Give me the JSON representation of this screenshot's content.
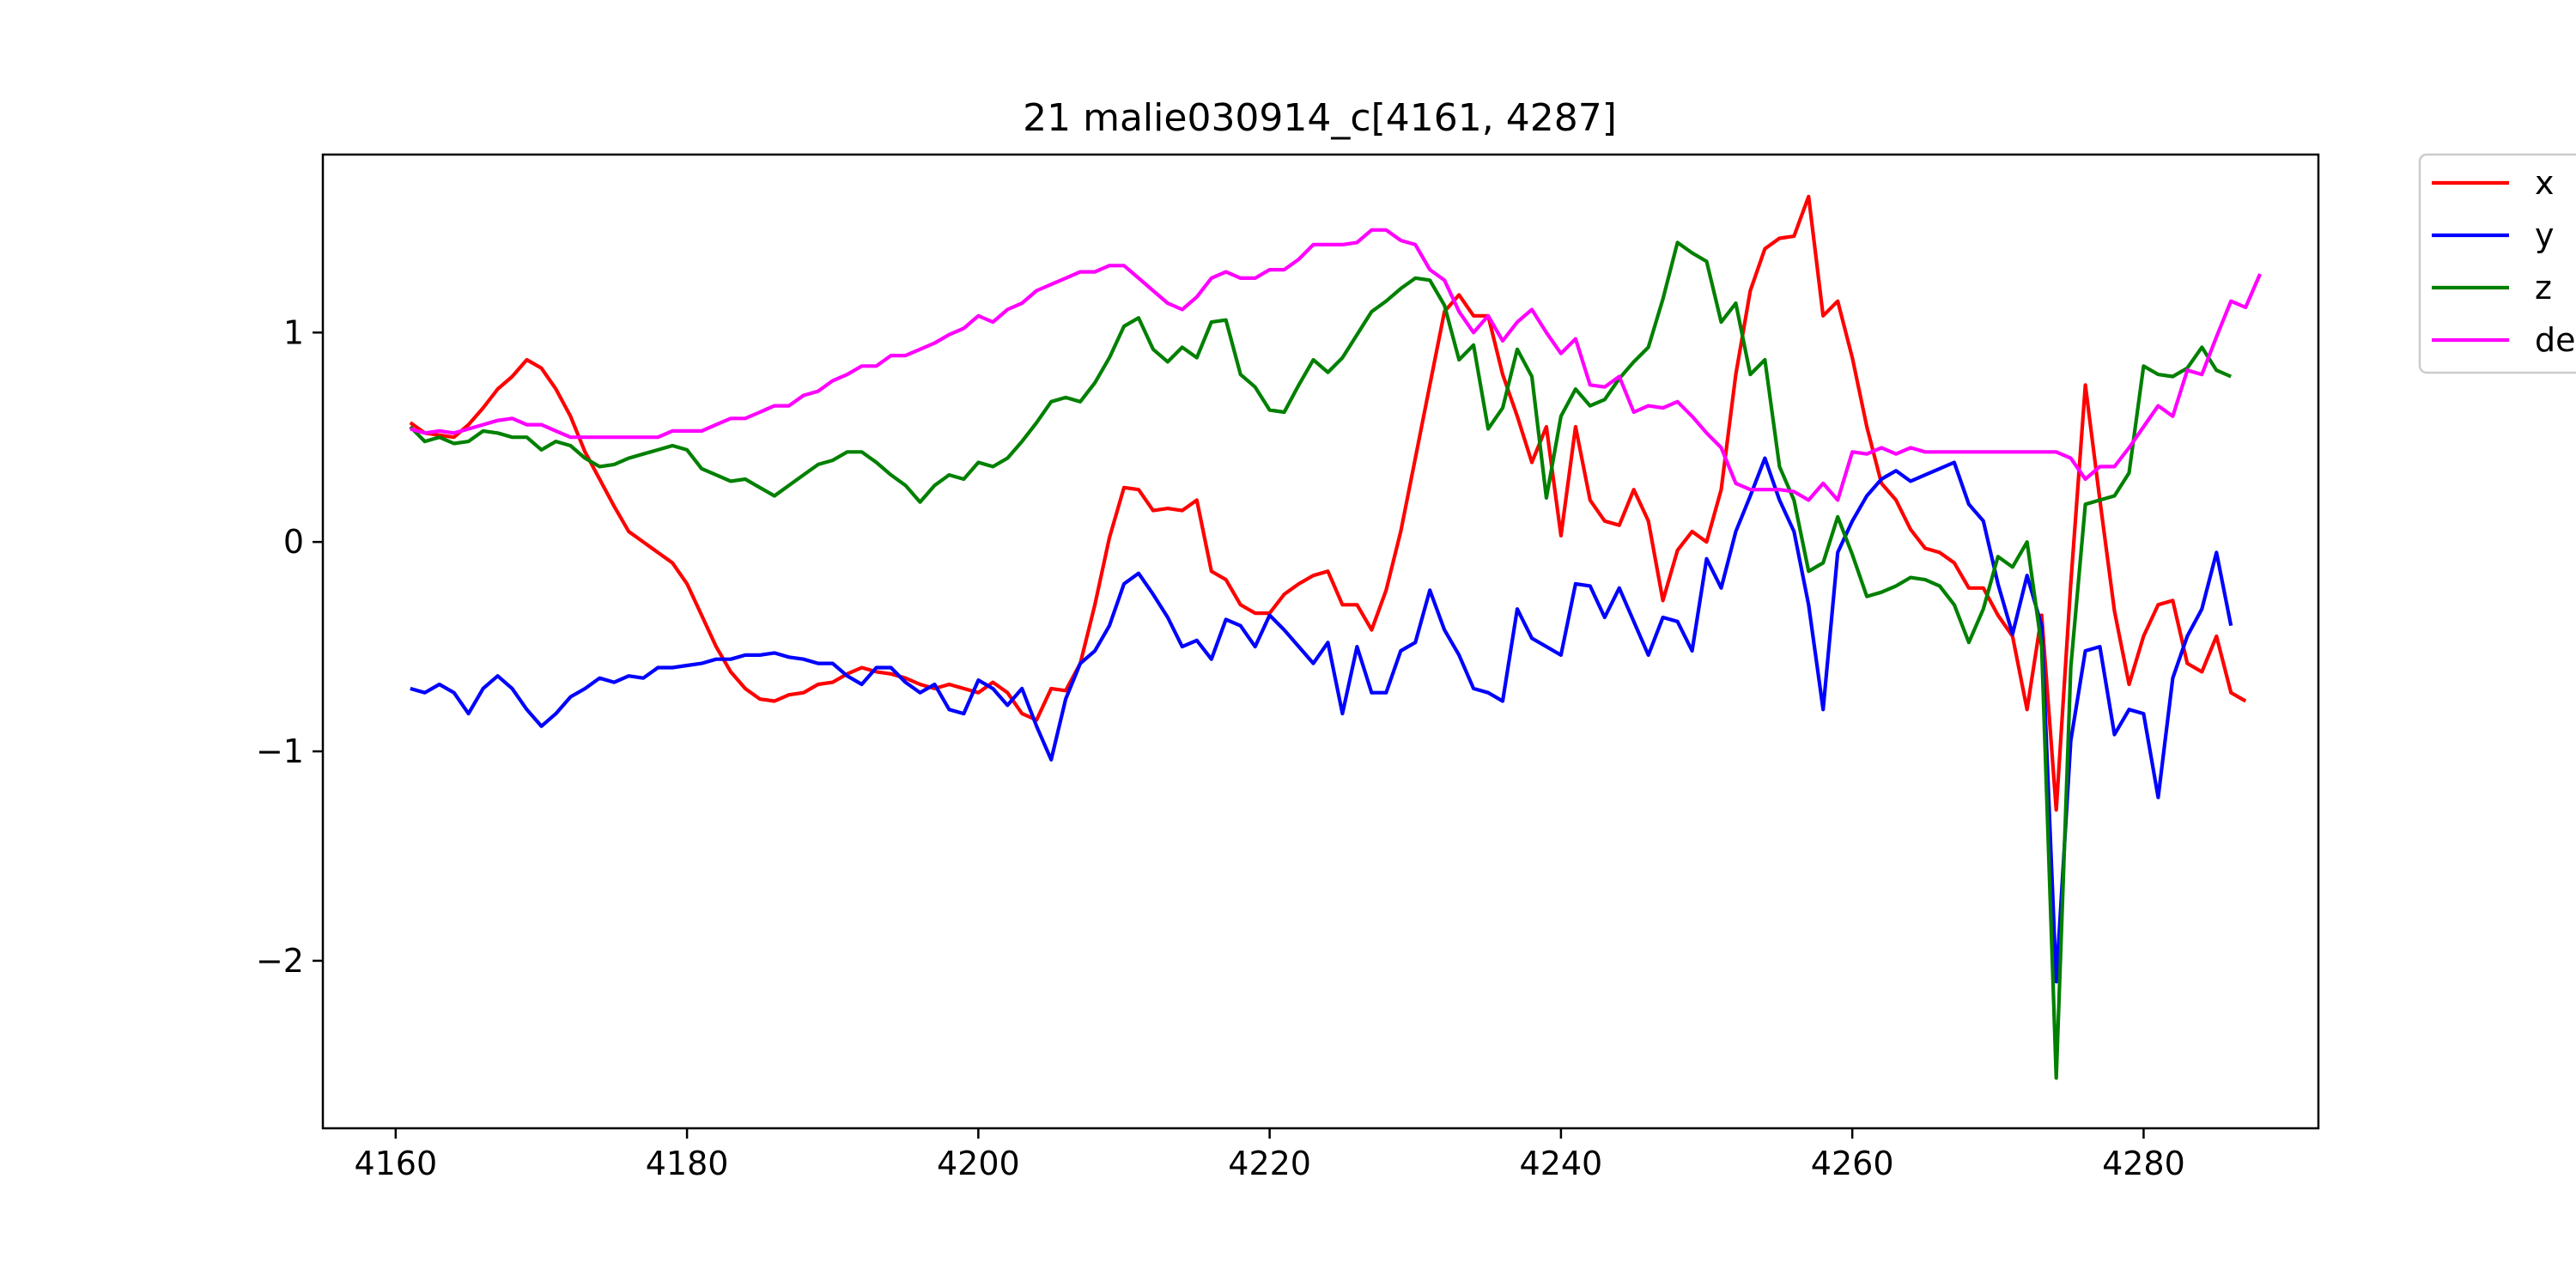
{
  "chart_data": {
    "type": "line",
    "title": "21 malie030914_c[4161, 4287]",
    "xlabel": "",
    "ylabel": "",
    "xlim": [
      4155,
      4292
    ],
    "ylim": [
      -2.8,
      1.85
    ],
    "grid": false,
    "legend_position": "outside-right-top",
    "x_ticks": [
      4160,
      4180,
      4200,
      4220,
      4240,
      4260,
      4280
    ],
    "x_tick_labels": [
      "4160",
      "4180",
      "4200",
      "4220",
      "4240",
      "4260",
      "4280"
    ],
    "y_ticks": [
      1,
      0,
      -1,
      -2
    ],
    "y_tick_labels": [
      "1",
      "0",
      "−1",
      "−2"
    ],
    "x_start": 4161,
    "series": [
      {
        "name": "x",
        "color": "#ff0000",
        "values": [
          0.57,
          0.52,
          0.51,
          0.5,
          0.56,
          0.64,
          0.73,
          0.79,
          0.87,
          0.83,
          0.73,
          0.6,
          0.43,
          0.3,
          0.17,
          0.05,
          0.0,
          -0.05,
          -0.1,
          -0.2,
          -0.35,
          -0.5,
          -0.62,
          -0.7,
          -0.75,
          -0.76,
          -0.73,
          -0.72,
          -0.68,
          -0.67,
          -0.63,
          -0.6,
          -0.62,
          -0.63,
          -0.65,
          -0.68,
          -0.7,
          -0.68,
          -0.7,
          -0.72,
          -0.67,
          -0.72,
          -0.82,
          -0.85,
          -0.7,
          -0.71,
          -0.58,
          -0.3,
          0.02,
          0.26,
          0.25,
          0.15,
          0.16,
          0.15,
          0.2,
          -0.14,
          -0.18,
          -0.3,
          -0.34,
          -0.34,
          -0.25,
          -0.2,
          -0.16,
          -0.14,
          -0.3,
          -0.3,
          -0.42,
          -0.23,
          0.05,
          0.4,
          0.75,
          1.1,
          1.18,
          1.08,
          1.08,
          0.8,
          0.6,
          0.38,
          0.55,
          0.03,
          0.55,
          0.2,
          0.1,
          0.08,
          0.25,
          0.1,
          -0.28,
          -0.04,
          0.05,
          0.0,
          0.25,
          0.8,
          1.2,
          1.4,
          1.45,
          1.46,
          1.65,
          1.08,
          1.15,
          0.88,
          0.55,
          0.28,
          0.2,
          0.06,
          -0.03,
          -0.05,
          -0.1,
          -0.22,
          -0.22,
          -0.35,
          -0.45,
          -0.8,
          -0.35,
          -1.28,
          -0.2,
          0.75,
          0.2,
          -0.33,
          -0.68,
          -0.45,
          -0.3,
          -0.28,
          -0.58,
          -0.62,
          -0.45,
          -0.72,
          -0.76
        ]
      },
      {
        "name": "y",
        "color": "#0000ff",
        "values": [
          -0.7,
          -0.72,
          -0.68,
          -0.72,
          -0.82,
          -0.7,
          -0.64,
          -0.7,
          -0.8,
          -0.88,
          -0.82,
          -0.74,
          -0.7,
          -0.65,
          -0.67,
          -0.64,
          -0.65,
          -0.6,
          -0.6,
          -0.59,
          -0.58,
          -0.56,
          -0.56,
          -0.54,
          -0.54,
          -0.53,
          -0.55,
          -0.56,
          -0.58,
          -0.58,
          -0.64,
          -0.68,
          -0.6,
          -0.6,
          -0.67,
          -0.72,
          -0.68,
          -0.8,
          -0.82,
          -0.66,
          -0.7,
          -0.78,
          -0.7,
          -0.88,
          -1.04,
          -0.75,
          -0.58,
          -0.52,
          -0.4,
          -0.2,
          -0.15,
          -0.25,
          -0.36,
          -0.5,
          -0.47,
          -0.56,
          -0.37,
          -0.4,
          -0.5,
          -0.35,
          -0.42,
          -0.5,
          -0.58,
          -0.48,
          -0.82,
          -0.5,
          -0.72,
          -0.72,
          -0.52,
          -0.48,
          -0.23,
          -0.42,
          -0.54,
          -0.7,
          -0.72,
          -0.76,
          -0.32,
          -0.46,
          -0.5,
          -0.54,
          -0.2,
          -0.21,
          -0.36,
          -0.22,
          -0.38,
          -0.54,
          -0.36,
          -0.38,
          -0.52,
          -0.08,
          -0.22,
          0.05,
          0.22,
          0.4,
          0.2,
          0.05,
          -0.3,
          -0.8,
          -0.05,
          0.1,
          0.22,
          0.3,
          0.34,
          0.29,
          0.32,
          0.35,
          0.38,
          0.18,
          0.1,
          -0.2,
          -0.44,
          -0.16,
          -0.4,
          -2.1,
          -0.95,
          -0.52,
          -0.5,
          -0.92,
          -0.8,
          -0.82,
          -1.22,
          -0.65,
          -0.45,
          -0.32,
          -0.05,
          -0.4
        ]
      },
      {
        "name": "z",
        "color": "#008000",
        "values": [
          0.55,
          0.48,
          0.5,
          0.47,
          0.48,
          0.53,
          0.52,
          0.5,
          0.5,
          0.44,
          0.48,
          0.46,
          0.4,
          0.36,
          0.37,
          0.4,
          0.42,
          0.44,
          0.46,
          0.44,
          0.35,
          0.32,
          0.29,
          0.3,
          0.26,
          0.22,
          0.27,
          0.32,
          0.37,
          0.39,
          0.43,
          0.43,
          0.38,
          0.32,
          0.27,
          0.19,
          0.27,
          0.32,
          0.3,
          0.38,
          0.36,
          0.4,
          0.48,
          0.57,
          0.67,
          0.69,
          0.67,
          0.76,
          0.88,
          1.03,
          1.07,
          0.92,
          0.86,
          0.93,
          0.88,
          1.05,
          1.06,
          0.8,
          0.74,
          0.63,
          0.62,
          0.75,
          0.87,
          0.81,
          0.88,
          0.99,
          1.1,
          1.15,
          1.21,
          1.26,
          1.25,
          1.13,
          0.87,
          0.94,
          0.54,
          0.64,
          0.92,
          0.79,
          0.21,
          0.6,
          0.73,
          0.65,
          0.68,
          0.78,
          0.86,
          0.93,
          1.16,
          1.43,
          1.38,
          1.34,
          1.05,
          1.14,
          0.8,
          0.87,
          0.36,
          0.2,
          -0.14,
          -0.1,
          0.12,
          -0.06,
          -0.26,
          -0.24,
          -0.21,
          -0.17,
          -0.18,
          -0.21,
          -0.3,
          -0.48,
          -0.32,
          -0.07,
          -0.12,
          0.0,
          -0.5,
          -2.56,
          -0.6,
          0.18,
          0.2,
          0.22,
          0.33,
          0.84,
          0.8,
          0.79,
          0.83,
          0.93,
          0.82,
          0.79
        ]
      },
      {
        "name": "de",
        "color": "#ff00ff",
        "values": [
          0.54,
          0.52,
          0.53,
          0.52,
          0.54,
          0.56,
          0.58,
          0.59,
          0.56,
          0.56,
          0.53,
          0.5,
          0.5,
          0.5,
          0.5,
          0.5,
          0.5,
          0.5,
          0.53,
          0.53,
          0.53,
          0.56,
          0.59,
          0.59,
          0.62,
          0.65,
          0.65,
          0.7,
          0.72,
          0.77,
          0.8,
          0.84,
          0.84,
          0.89,
          0.89,
          0.92,
          0.95,
          0.99,
          1.02,
          1.08,
          1.05,
          1.11,
          1.14,
          1.2,
          1.23,
          1.26,
          1.29,
          1.29,
          1.32,
          1.32,
          1.26,
          1.2,
          1.14,
          1.11,
          1.17,
          1.26,
          1.29,
          1.26,
          1.26,
          1.3,
          1.3,
          1.35,
          1.42,
          1.42,
          1.42,
          1.43,
          1.49,
          1.49,
          1.44,
          1.42,
          1.3,
          1.25,
          1.1,
          1.0,
          1.08,
          0.96,
          1.05,
          1.11,
          1.0,
          0.9,
          0.97,
          0.75,
          0.74,
          0.79,
          0.62,
          0.65,
          0.64,
          0.67,
          0.6,
          0.52,
          0.45,
          0.28,
          0.25,
          0.25,
          0.25,
          0.24,
          0.2,
          0.28,
          0.2,
          0.43,
          0.42,
          0.45,
          0.42,
          0.45,
          0.43,
          0.43,
          0.43,
          0.43,
          0.43,
          0.43,
          0.43,
          0.43,
          0.43,
          0.43,
          0.4,
          0.3,
          0.36,
          0.36,
          0.45,
          0.55,
          0.65,
          0.6,
          0.82,
          0.8,
          0.98,
          1.15,
          1.12,
          1.28
        ]
      }
    ]
  }
}
